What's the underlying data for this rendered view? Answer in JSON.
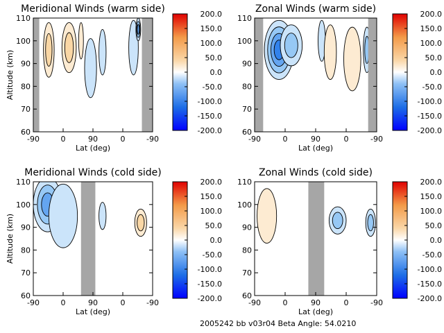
{
  "chart_data": [
    {
      "type": "heatmap",
      "title": "Meridional Winds (warm side)",
      "xlabel": "Lat (deg)",
      "ylabel": "Altitude (km)",
      "x_tick_labels": [
        "-90",
        "0",
        "90",
        "0",
        "-90"
      ],
      "ylim": [
        60,
        110
      ],
      "y_ticks": [
        60,
        70,
        80,
        90,
        100,
        110
      ],
      "colorbar": {
        "range": [
          -200,
          200
        ],
        "tick_labels": [
          "200.0",
          "150.0",
          "100.0",
          "50.0",
          "0.0",
          "-50.0",
          "-100.0",
          "-150.0",
          "-200.0"
        ]
      },
      "blobs": [
        {
          "x": 0.13,
          "y": 96,
          "rx": 0.045,
          "ry": 12,
          "value": 70
        },
        {
          "x": 0.3,
          "y": 97,
          "rx": 0.06,
          "ry": 11,
          "value": 55
        },
        {
          "x": 0.4,
          "y": 100,
          "rx": 0.02,
          "ry": 8,
          "value": 30
        },
        {
          "x": 0.48,
          "y": 88,
          "rx": 0.05,
          "ry": 13,
          "value": -30
        },
        {
          "x": 0.58,
          "y": 95,
          "rx": 0.03,
          "ry": 10,
          "value": -25
        },
        {
          "x": 0.84,
          "y": 97,
          "rx": 0.04,
          "ry": 12,
          "value": -40
        },
        {
          "x": 0.88,
          "y": 105,
          "rx": 0.02,
          "ry": 5,
          "value": -90
        }
      ],
      "gray_bands": [
        [
          0.0,
          0.05
        ],
        [
          0.91,
          1.0
        ]
      ],
      "blank_region": {
        "x": [
          0.42,
          1.0
        ],
        "ylim_bottom": 60
      }
    },
    {
      "type": "heatmap",
      "title": "Zonal Winds (warm side)",
      "xlabel": "Lat (deg)",
      "ylabel": "",
      "x_tick_labels": [
        "-90",
        "0",
        "90",
        "0",
        "-90"
      ],
      "ylim": [
        60,
        110
      ],
      "y_ticks": [
        60,
        70,
        80,
        90,
        100,
        110
      ],
      "colorbar": {
        "range": [
          -200,
          200
        ],
        "tick_labels": [
          "200.0",
          "150.0",
          "100.0",
          "50.0",
          "0.0",
          "-50.0",
          "-100.0",
          "-150.0",
          "-200.0"
        ]
      },
      "blobs": [
        {
          "x": 0.2,
          "y": 96,
          "rx": 0.12,
          "ry": 13,
          "value": -120
        },
        {
          "x": 0.3,
          "y": 98,
          "rx": 0.09,
          "ry": 9,
          "value": -60
        },
        {
          "x": 0.55,
          "y": 100,
          "rx": 0.03,
          "ry": 9,
          "value": -40
        },
        {
          "x": 0.62,
          "y": 95,
          "rx": 0.05,
          "ry": 12,
          "value": 30
        },
        {
          "x": 0.8,
          "y": 92,
          "rx": 0.07,
          "ry": 14,
          "value": 40
        },
        {
          "x": 0.92,
          "y": 96,
          "rx": 0.03,
          "ry": 10,
          "value": -50
        }
      ],
      "gray_bands": [
        [
          0.0,
          0.07
        ],
        [
          0.93,
          1.0
        ]
      ]
    },
    {
      "type": "heatmap",
      "title": "Meridional Winds (cold side)",
      "xlabel": "Lat (deg)",
      "ylabel": "Altitude (km)",
      "x_tick_labels": [
        "-90",
        "0",
        "90",
        "0",
        "-90"
      ],
      "ylim": [
        60,
        110
      ],
      "y_ticks": [
        60,
        70,
        80,
        90,
        100,
        110
      ],
      "colorbar": {
        "range": [
          -200,
          200
        ],
        "tick_labels": [
          "200.0",
          "150.0",
          "100.0",
          "50.0",
          "0.0",
          "-50.0",
          "-100.0",
          "-150.0",
          "-200.0"
        ]
      },
      "blobs": [
        {
          "x": 0.12,
          "y": 100,
          "rx": 0.12,
          "ry": 12,
          "value": -90
        },
        {
          "x": 0.25,
          "y": 95,
          "rx": 0.12,
          "ry": 14,
          "value": -45
        },
        {
          "x": 0.58,
          "y": 95,
          "rx": 0.03,
          "ry": 6,
          "value": -25
        },
        {
          "x": 0.9,
          "y": 92,
          "rx": 0.05,
          "ry": 6,
          "value": 60
        }
      ],
      "gray_bands": [
        [
          0.4,
          0.52
        ]
      ]
    },
    {
      "type": "heatmap",
      "title": "Zonal Winds (cold side)",
      "xlabel": "Lat (deg)",
      "ylabel": "",
      "x_tick_labels": [
        "-90",
        "0",
        "90",
        "0",
        "-90"
      ],
      "ylim": [
        60,
        110
      ],
      "y_ticks": [
        60,
        70,
        80,
        90,
        100,
        110
      ],
      "colorbar": {
        "range": [
          -200,
          200
        ],
        "tick_labels": [
          "200.0",
          "150.0",
          "100.0",
          "50.0",
          "0.0",
          "-50.0",
          "-100.0",
          "-150.0",
          "-200.0"
        ]
      },
      "blobs": [
        {
          "x": 0.1,
          "y": 95,
          "rx": 0.08,
          "ry": 12,
          "value": 30
        },
        {
          "x": 0.2,
          "y": 105,
          "rx": 0.05,
          "ry": 5,
          "value": -20
        },
        {
          "x": 0.36,
          "y": 97,
          "rx": 0.05,
          "ry": 10,
          "value": 20
        },
        {
          "x": 0.68,
          "y": 93,
          "rx": 0.07,
          "ry": 6,
          "value": -60
        },
        {
          "x": 0.95,
          "y": 92,
          "rx": 0.04,
          "ry": 6,
          "value": -70
        }
      ],
      "gray_bands": [
        [
          0.44,
          0.57
        ]
      ]
    }
  ],
  "footer": "2005242 bb v03r04   Beta Angle: 54.0210"
}
